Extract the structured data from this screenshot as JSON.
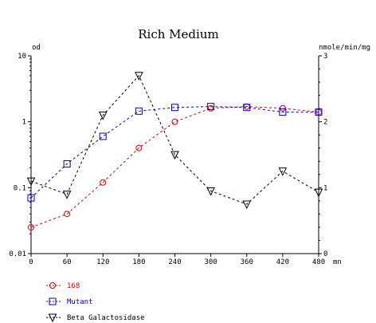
{
  "chart_data": {
    "type": "line",
    "title": "Rich Medium",
    "ylabel": "od",
    "y2label": "nmole/min/mg",
    "xunit": "mn",
    "xlim": [
      0,
      480
    ],
    "ylim": [
      0.01,
      10
    ],
    "yscale": "log",
    "y2lim": [
      0,
      3
    ],
    "x_ticks": [
      0,
      60,
      120,
      180,
      240,
      300,
      360,
      420,
      480
    ],
    "y_ticks": [
      "0.01",
      "0.1",
      "1",
      "10"
    ],
    "y2_ticks": [
      "0",
      "1",
      "2",
      "3"
    ],
    "grid": false,
    "legend_position": "bottom-left",
    "x": [
      0,
      60,
      120,
      180,
      240,
      300,
      360,
      420,
      480
    ],
    "series": [
      {
        "name": "168",
        "axis": "left",
        "marker": "circle",
        "color": "#e00000",
        "values": [
          0.025,
          0.04,
          0.12,
          0.4,
          1.0,
          1.6,
          1.7,
          1.6,
          1.4
        ]
      },
      {
        "name": "Mutant",
        "axis": "left",
        "marker": "square",
        "color": "#0000cc",
        "values": [
          0.07,
          0.23,
          0.6,
          1.45,
          1.65,
          1.7,
          1.65,
          1.4,
          1.4
        ]
      },
      {
        "name": "Beta Galactosidase",
        "axis": "right",
        "marker": "triangle-down",
        "color": "#000000",
        "values": [
          1.1,
          0.9,
          2.1,
          2.7,
          1.5,
          0.95,
          0.75,
          1.25,
          0.93
        ]
      }
    ]
  }
}
